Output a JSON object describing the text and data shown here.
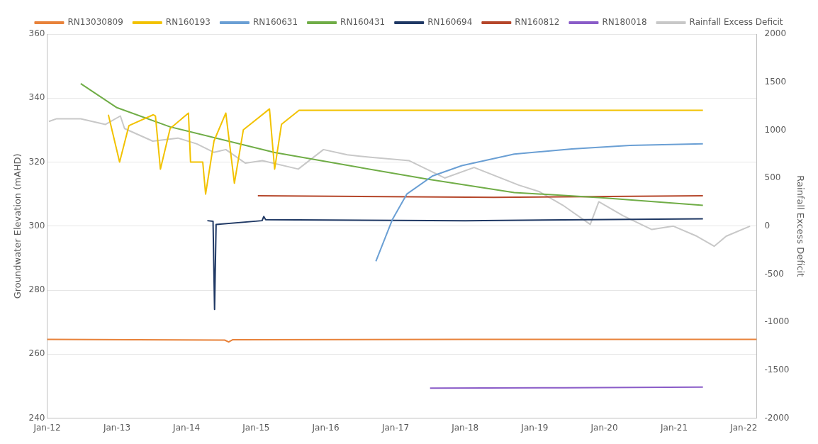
{
  "chart_data": {
    "type": "line",
    "ylabel": "Groundwater Elevation (mAHD)",
    "y2label": "Rainfall Excess Deficit",
    "legend": "top",
    "grid": "y",
    "marker": "none",
    "line_style": "solid",
    "xlim": [
      "2012-01-01",
      "2022-03-10"
    ],
    "xticks": [
      {
        "value": "2012-01-01",
        "label": "Jan-12"
      },
      {
        "value": "2013-01-01",
        "label": "Jan-13"
      },
      {
        "value": "2014-01-01",
        "label": "Jan-14"
      },
      {
        "value": "2015-01-01",
        "label": "Jan-15"
      },
      {
        "value": "2016-01-01",
        "label": "Jan-16"
      },
      {
        "value": "2017-01-01",
        "label": "Jan-17"
      },
      {
        "value": "2018-01-01",
        "label": "Jan-18"
      },
      {
        "value": "2019-01-01",
        "label": "Jan-19"
      },
      {
        "value": "2020-01-01",
        "label": "Jan-20"
      },
      {
        "value": "2021-01-01",
        "label": "Jan-21"
      },
      {
        "value": "2022-01-01",
        "label": "Jan-22"
      }
    ],
    "ylim": [
      240,
      360
    ],
    "yticks": [
      240,
      260,
      280,
      300,
      320,
      340,
      360
    ],
    "y2lim": [
      -2000,
      2000
    ],
    "y2ticks": [
      -2000,
      -1500,
      -1000,
      -500,
      0,
      500,
      1000,
      1500,
      2000
    ],
    "series": [
      {
        "name": "RN13030809",
        "color": "#e8823a",
        "x": [
          "2012-01-01",
          "2014-07-20",
          "2014-08-10",
          "2014-08-30",
          "2018-01-01",
          "2022-03-10"
        ],
        "values": [
          264.6,
          264.4,
          263.8,
          264.5,
          264.6,
          264.6
        ]
      },
      {
        "name": "RN160193",
        "color": "#f2c200",
        "x": [
          "2012-11-17",
          "2013-01-15",
          "2013-03-05",
          "2013-07-11",
          "2013-07-22",
          "2013-08-17",
          "2013-10-07",
          "2014-01-11",
          "2014-01-22",
          "2014-03-27",
          "2014-04-11",
          "2014-05-25",
          "2014-07-26",
          "2014-09-09",
          "2014-10-26",
          "2015-03-12",
          "2015-04-08",
          "2015-05-14",
          "2015-08-14",
          "2021-06-01"
        ],
        "values": [
          334.8,
          320,
          331.4,
          334.8,
          334.4,
          317.8,
          330.5,
          335.3,
          320,
          320,
          310,
          326.6,
          335.3,
          313.4,
          330.1,
          336.6,
          317.8,
          331.8,
          336.2,
          336.2
        ]
      },
      {
        "name": "RN160631",
        "color": "#6a9fd4",
        "x": [
          "2016-09-20",
          "2016-12-15",
          "2017-03-01",
          "2017-07-15",
          "2017-12-15",
          "2018-09-15",
          "2019-07-15",
          "2020-05-15",
          "2021-06-01"
        ],
        "values": [
          289,
          302,
          310,
          315.7,
          318.9,
          322.5,
          324.1,
          325.2,
          325.7
        ]
      },
      {
        "name": "RN160431",
        "color": "#70ad47",
        "x": [
          "2012-06-25",
          "2013-01-01",
          "2013-10-07",
          "2015-04-08",
          "2016-04-23",
          "2017-06-15",
          "2018-09-15",
          "2019-12-15",
          "2021-06-01"
        ],
        "values": [
          344.5,
          337,
          331,
          323,
          319,
          314.7,
          310.5,
          308.9,
          306.5
        ]
      },
      {
        "name": "RN160694",
        "color": "#1f3864",
        "x": [
          "2014-04-20",
          "2014-05-20",
          "2014-05-28",
          "2014-06-05",
          "2015-02-01",
          "2015-02-10",
          "2015-02-20",
          "2018-01-01",
          "2021-06-01"
        ],
        "values": [
          301.7,
          301.5,
          274,
          300.5,
          301.7,
          303,
          302,
          301.7,
          302.3
        ]
      },
      {
        "name": "RN160812",
        "color": "#b5462a",
        "x": [
          "2015-01-10",
          "2018-06-01",
          "2021-06-01"
        ],
        "values": [
          309.5,
          309,
          309.5
        ]
      },
      {
        "name": "RN180018",
        "color": "#8a5cc8",
        "x": [
          "2017-07-01",
          "2019-06-01",
          "2021-06-01"
        ],
        "values": [
          249.4,
          249.5,
          249.7
        ]
      },
      {
        "name": "Rainfall Excess Deficit",
        "color": "#c8c8c8",
        "axis": "y2",
        "x": [
          "2012-01-10",
          "2012-02-20",
          "2012-06-25",
          "2012-11-02",
          "2013-01-19",
          "2013-02-10",
          "2013-07-08",
          "2013-11-17",
          "2014-02-24",
          "2014-05-25",
          "2014-07-26",
          "2014-11-06",
          "2015-02-03",
          "2015-08-10",
          "2015-12-20",
          "2016-04-23",
          "2016-08-24",
          "2017-03-14",
          "2017-09-16",
          "2018-02-17",
          "2018-10-08",
          "2019-01-26",
          "2019-05-28",
          "2019-10-19",
          "2019-12-03",
          "2020-04-08",
          "2020-09-06",
          "2020-12-28",
          "2021-04-30",
          "2021-07-30",
          "2021-10-01",
          "2022-02-03"
        ],
        "values": [
          1090,
          1118,
          1118,
          1059,
          1147,
          1016,
          885,
          917,
          856,
          768,
          797,
          655,
          681,
          594,
          797,
          742,
          716,
          681,
          501,
          611,
          428,
          358,
          218,
          18,
          254,
          109,
          -35,
          0,
          -105,
          -210,
          -105,
          0
        ]
      }
    ]
  }
}
